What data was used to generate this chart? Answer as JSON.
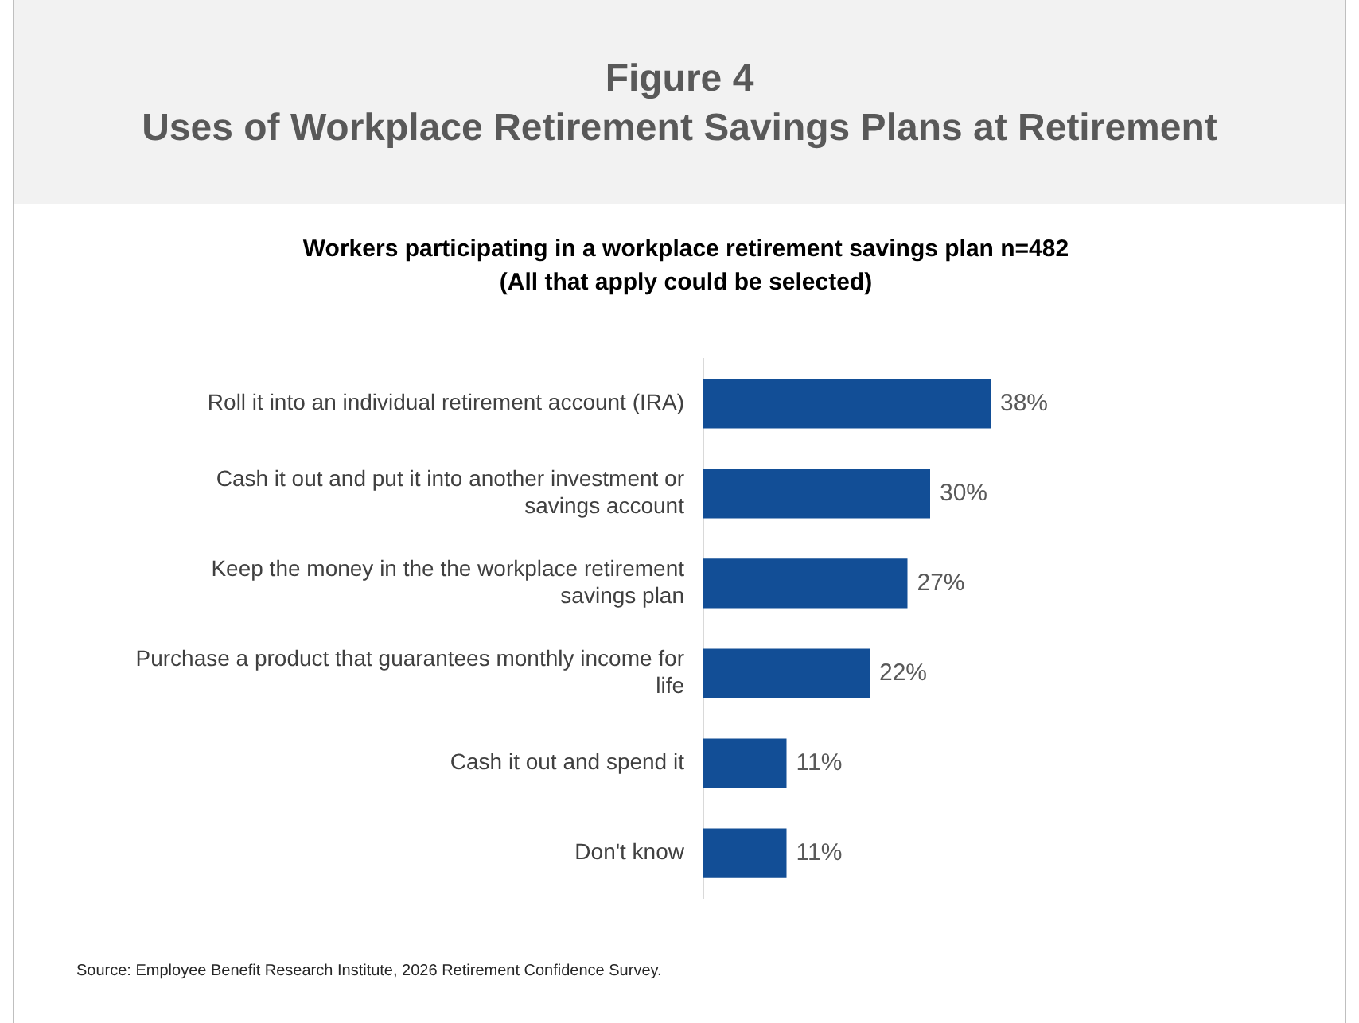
{
  "chart_data": {
    "type": "bar",
    "orientation": "horizontal",
    "title": "Figure 4\nUses of Workplace Retirement Savings Plans at Retirement",
    "subtitle": "Workers participating in a workplace retirement savings plan n=482\n(All that apply could be selected)",
    "categories": [
      "Roll it into an individual retirement account (IRA)",
      "Cash it out and put it into another investment or savings account",
      "Keep the money in the the workplace retirement savings plan",
      "Purchase a product that guarantees monthly income for life",
      "Cash it out and spend it",
      "Don't know"
    ],
    "values": [
      38,
      30,
      27,
      22,
      11,
      11
    ],
    "color": "#124e96",
    "data_labels": true,
    "value_labels": [
      "38%",
      "30%",
      "27%",
      "22%",
      "11%",
      "11%"
    ],
    "tick_labels": "y",
    "legend": false,
    "annotations": [
      "Source: Employee Benefit Research Institute, 2026 Retirement Confidence Survey."
    ]
  }
}
